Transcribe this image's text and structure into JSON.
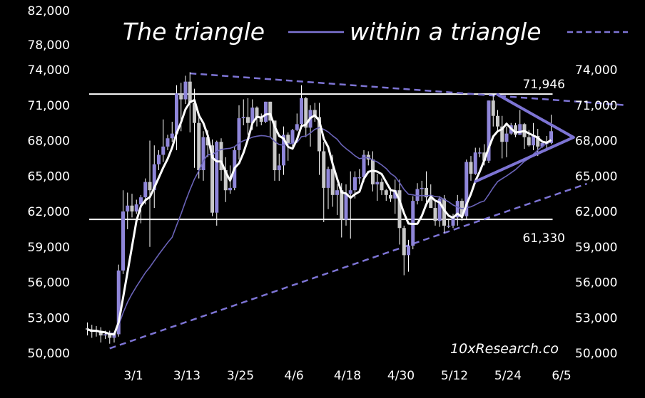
{
  "chart_data": {
    "type": "candlestick",
    "title_part1": "The triangle",
    "title_part2": "within a triangle",
    "watermark": "10xResearch.co",
    "colors": {
      "background": "#000000",
      "up": "#8f86d9",
      "down": "#c8c8c8",
      "wick": "#ffffff",
      "fast_ma": "#ffffff",
      "slow_ma": "#6a63b8",
      "trendline": "#7d74d4",
      "level": "#ffffff"
    },
    "left_y_ticks": [
      "82,000",
      "78,000",
      "74,000",
      "71,000",
      "68,000",
      "65,000",
      "62,000",
      "59,000",
      "56,000",
      "53,000",
      "50,000"
    ],
    "right_y_ticks": [
      "74,000",
      "71,000",
      "68,000",
      "65,000",
      "62,000",
      "59,000",
      "56,000",
      "53,000",
      "50,000"
    ],
    "y_tick_values": [
      74000,
      71000,
      68000,
      65000,
      62000,
      59000,
      56000,
      53000,
      50000
    ],
    "x_ticks": [
      "3/1",
      "3/13",
      "3/25",
      "4/6",
      "4/18",
      "4/30",
      "5/12",
      "5/24",
      "6/5"
    ],
    "levels": [
      {
        "label": "71,946",
        "value": 71946,
        "from": "2/20",
        "to": "6/3"
      },
      {
        "label": "61,330",
        "value": 61330,
        "from": "2/20",
        "to": "6/3"
      }
    ],
    "big_triangle": [
      {
        "from": [
          "3/14",
          73700
        ],
        "to": [
          "6/20",
          71000
        ],
        "style": "dashed"
      },
      {
        "from": [
          "2/25",
          50400
        ],
        "to": [
          "6/11",
          64350
        ],
        "style": "dashed"
      }
    ],
    "small_triangle": [
      {
        "from": [
          "5/22",
          71900
        ],
        "to": [
          "6/8",
          68280
        ]
      },
      {
        "from": [
          "5/17",
          64540
        ],
        "to": [
          "6/8",
          68280
        ]
      }
    ],
    "candles_columns": [
      "date",
      "open",
      "high",
      "low",
      "close"
    ],
    "candles": [
      [
        "2/20",
        52100,
        52600,
        51500,
        52000
      ],
      [
        "2/21",
        52000,
        52400,
        51300,
        51800
      ],
      [
        "2/22",
        51800,
        52300,
        51400,
        51900
      ],
      [
        "2/23",
        51900,
        52200,
        50900,
        51500
      ],
      [
        "2/24",
        51500,
        51900,
        51200,
        51600
      ],
      [
        "2/25",
        51600,
        51900,
        50800,
        51300
      ],
      [
        "2/26",
        51300,
        51800,
        50900,
        51600
      ],
      [
        "2/27",
        51600,
        57500,
        51400,
        57000
      ],
      [
        "2/28",
        57000,
        63800,
        56700,
        62000
      ],
      [
        "2/29",
        62000,
        63600,
        60500,
        62500
      ],
      [
        "3/1",
        62500,
        63500,
        61500,
        62000
      ],
      [
        "3/2",
        62000,
        63000,
        61800,
        62600
      ],
      [
        "3/3",
        62600,
        63400,
        61000,
        63200
      ],
      [
        "3/4",
        63200,
        64800,
        62600,
        64500
      ],
      [
        "3/5",
        64500,
        68000,
        59000,
        63800
      ],
      [
        "3/6",
        63800,
        67600,
        62300,
        66000
      ],
      [
        "3/7",
        66000,
        67200,
        65500,
        66800
      ],
      [
        "3/8",
        66800,
        69800,
        66200,
        67500
      ],
      [
        "3/9",
        67500,
        68500,
        67200,
        68200
      ],
      [
        "3/10",
        68200,
        69600,
        67900,
        68600
      ],
      [
        "3/11",
        68600,
        72700,
        67200,
        72000
      ],
      [
        "3/12",
        72000,
        72900,
        68800,
        71500
      ],
      [
        "3/13",
        71500,
        73500,
        71100,
        73000
      ],
      [
        "3/14",
        73000,
        73800,
        68700,
        71200
      ],
      [
        "3/15",
        71200,
        72400,
        65700,
        69500
      ],
      [
        "3/16",
        69500,
        70000,
        64800,
        65500
      ],
      [
        "3/17",
        65500,
        68800,
        64600,
        68300
      ],
      [
        "3/18",
        68300,
        68900,
        66600,
        67600
      ],
      [
        "3/19",
        67600,
        68100,
        61600,
        61900
      ],
      [
        "3/20",
        61900,
        68000,
        60800,
        67900
      ],
      [
        "3/21",
        67900,
        68200,
        64600,
        65500
      ],
      [
        "3/22",
        65500,
        66600,
        62800,
        63800
      ],
      [
        "3/23",
        63800,
        65900,
        63500,
        64000
      ],
      [
        "3/24",
        64000,
        67500,
        63800,
        67200
      ],
      [
        "3/25",
        67200,
        71000,
        66400,
        69900
      ],
      [
        "3/26",
        69900,
        71500,
        69300,
        70000
      ],
      [
        "3/27",
        70000,
        71600,
        68500,
        69500
      ],
      [
        "3/28",
        69500,
        71500,
        68900,
        70800
      ],
      [
        "3/29",
        70800,
        70900,
        69200,
        69900
      ],
      [
        "3/30",
        69900,
        70300,
        69300,
        69600
      ],
      [
        "3/31",
        69600,
        71300,
        69500,
        71300
      ],
      [
        "4/1",
        71300,
        71300,
        68300,
        69700
      ],
      [
        "4/2",
        69700,
        69700,
        64600,
        65500
      ],
      [
        "4/3",
        65500,
        66900,
        64600,
        65900
      ],
      [
        "4/4",
        65900,
        69200,
        65100,
        68500
      ],
      [
        "4/5",
        68500,
        68700,
        66300,
        67800
      ],
      [
        "4/6",
        67800,
        69000,
        67500,
        68900
      ],
      [
        "4/7",
        68900,
        70300,
        68800,
        69400
      ],
      [
        "4/8",
        69400,
        72700,
        69200,
        71600
      ],
      [
        "4/9",
        71600,
        71700,
        68300,
        69100
      ],
      [
        "4/10",
        69100,
        71000,
        67500,
        70600
      ],
      [
        "4/11",
        70600,
        71200,
        69600,
        70000
      ],
      [
        "4/12",
        70000,
        71200,
        65100,
        67100
      ],
      [
        "4/13",
        67100,
        67900,
        61100,
        64000
      ],
      [
        "4/14",
        64000,
        65800,
        62200,
        65600
      ],
      [
        "4/15",
        65600,
        66800,
        62400,
        63400
      ],
      [
        "4/16",
        63400,
        64300,
        61700,
        63800
      ],
      [
        "4/17",
        63800,
        64400,
        59800,
        61300
      ],
      [
        "4/18",
        61300,
        64300,
        60800,
        63500
      ],
      [
        "4/19",
        63500,
        65400,
        59700,
        63800
      ],
      [
        "4/20",
        63800,
        65400,
        63100,
        64900
      ],
      [
        "4/21",
        64900,
        65600,
        64300,
        64900
      ],
      [
        "4/22",
        64900,
        67200,
        64500,
        66800
      ],
      [
        "4/23",
        66800,
        67100,
        65900,
        66400
      ],
      [
        "4/24",
        66400,
        67100,
        63700,
        64300
      ],
      [
        "4/25",
        64300,
        65200,
        62900,
        64500
      ],
      [
        "4/26",
        64500,
        64800,
        63400,
        63800
      ],
      [
        "4/27",
        63800,
        63900,
        62900,
        63400
      ],
      [
        "4/28",
        63400,
        64000,
        62800,
        63100
      ],
      [
        "4/29",
        63100,
        64700,
        61800,
        63800
      ],
      [
        "4/30",
        63800,
        64700,
        59200,
        60600
      ],
      [
        "5/1",
        60600,
        60800,
        56600,
        58300
      ],
      [
        "5/2",
        58300,
        59600,
        56900,
        59100
      ],
      [
        "5/3",
        59100,
        63300,
        58800,
        62900
      ],
      [
        "5/4",
        62900,
        64400,
        62600,
        63900
      ],
      [
        "5/5",
        63900,
        64600,
        62900,
        64000
      ],
      [
        "5/6",
        64000,
        65400,
        62800,
        63200
      ],
      [
        "5/7",
        63200,
        64300,
        62300,
        62300
      ],
      [
        "5/8",
        62300,
        63000,
        60800,
        61200
      ],
      [
        "5/9",
        61200,
        63300,
        60700,
        63100
      ],
      [
        "5/10",
        63100,
        63400,
        60200,
        60800
      ],
      [
        "5/11",
        60800,
        61400,
        60600,
        60800
      ],
      [
        "5/12",
        60800,
        61800,
        60600,
        61500
      ],
      [
        "5/13",
        61500,
        63400,
        60800,
        62900
      ],
      [
        "5/14",
        62900,
        63100,
        61200,
        61600
      ],
      [
        "5/15",
        61600,
        66400,
        61400,
        66200
      ],
      [
        "5/16",
        66200,
        66700,
        64600,
        65200
      ],
      [
        "5/17",
        65200,
        67400,
        65100,
        67000
      ],
      [
        "5/18",
        67000,
        67400,
        66600,
        67000
      ],
      [
        "5/19",
        67000,
        67700,
        65900,
        66300
      ],
      [
        "5/20",
        66300,
        71400,
        66100,
        71400
      ],
      [
        "5/21",
        71400,
        71900,
        69200,
        70100
      ],
      [
        "5/22",
        70100,
        70600,
        68900,
        69200
      ],
      [
        "5/23",
        69200,
        70100,
        66500,
        67900
      ],
      [
        "5/24",
        67900,
        69200,
        66600,
        68600
      ],
      [
        "5/25",
        68600,
        69500,
        68500,
        69300
      ],
      [
        "5/26",
        69300,
        69500,
        68300,
        68500
      ],
      [
        "5/27",
        68500,
        70600,
        68500,
        69400
      ],
      [
        "5/28",
        69400,
        69500,
        67300,
        68300
      ],
      [
        "5/29",
        68300,
        68900,
        67500,
        67600
      ],
      [
        "5/30",
        67600,
        69500,
        67200,
        68400
      ],
      [
        "5/31",
        68400,
        69000,
        66700,
        67500
      ],
      [
        "6/1",
        67500,
        67800,
        67400,
        67800
      ],
      [
        "6/2",
        67800,
        68400,
        67300,
        67800
      ],
      [
        "6/3",
        67800,
        70200,
        67700,
        68800
      ]
    ]
  }
}
